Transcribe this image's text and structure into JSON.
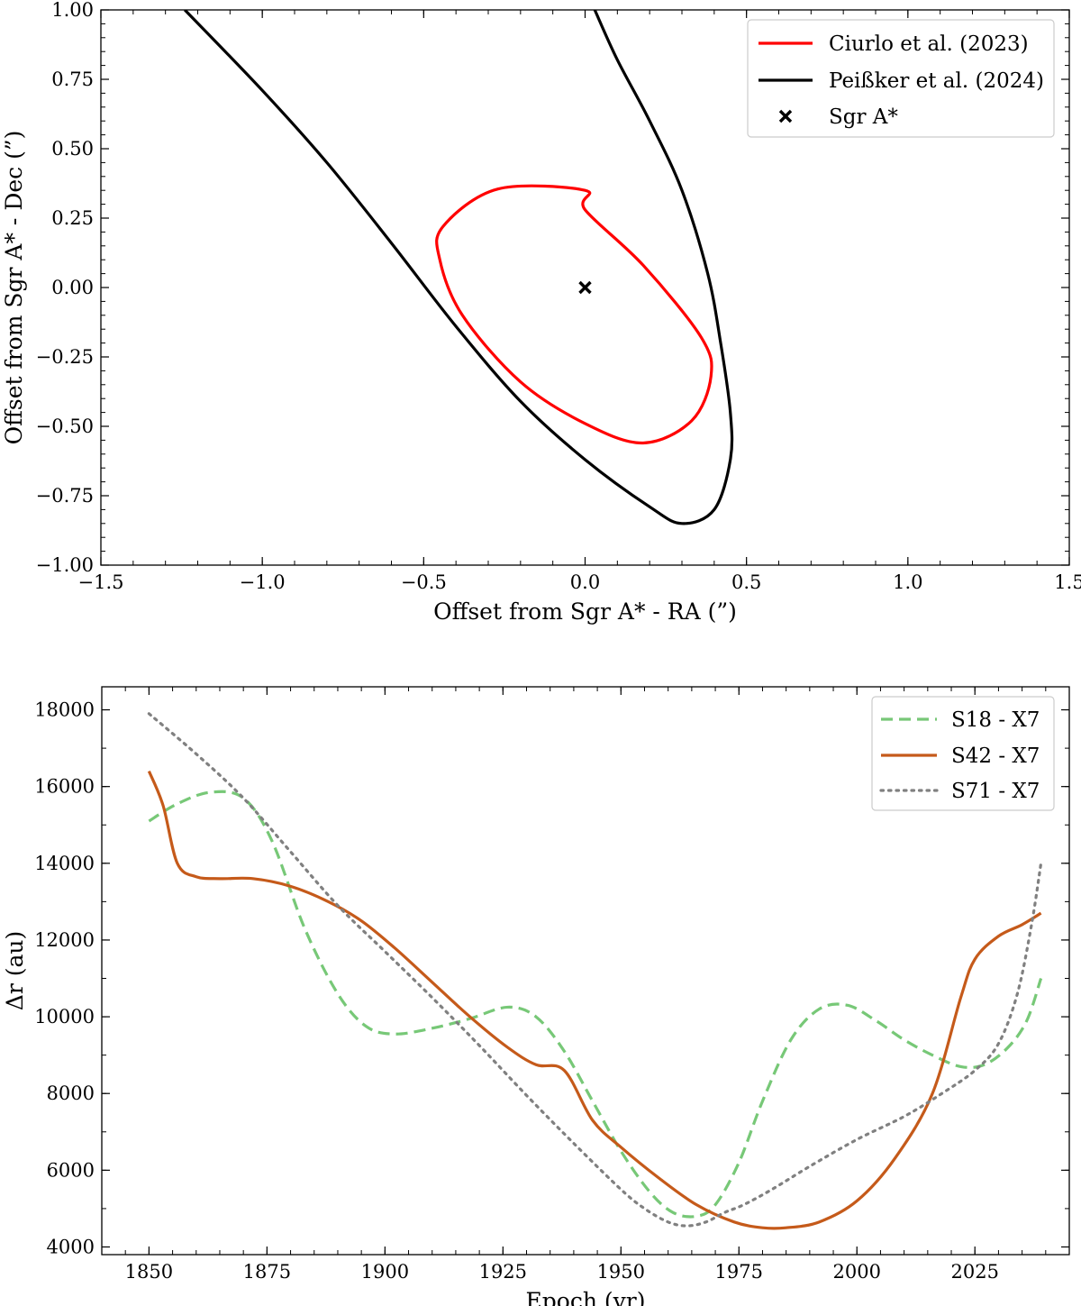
{
  "chart_data": [
    {
      "type": "line",
      "xlabel": "Offset from Sgr A* - RA (”)",
      "ylabel": "Offset from Sgr A* - Dec (”)",
      "xlim": [
        -1.5,
        1.5
      ],
      "ylim": [
        -1.0,
        1.0
      ],
      "xticks": [
        -1.5,
        -1.0,
        -0.5,
        0.0,
        0.5,
        1.0,
        1.5
      ],
      "xtick_labels": [
        "−1.5",
        "−1.0",
        "−0.5",
        "0.0",
        "0.5",
        "1.0",
        "1.5"
      ],
      "yticks": [
        -1.0,
        -0.75,
        -0.5,
        -0.25,
        0.0,
        0.25,
        0.5,
        0.75,
        1.0
      ],
      "ytick_labels": [
        "−1.00",
        "−0.75",
        "−0.50",
        "−0.25",
        "0.00",
        "0.25",
        "0.50",
        "0.75",
        "1.00"
      ],
      "grid": false,
      "legend_position": "top-right",
      "series": [
        {
          "name": "Ciurlo et al. (2023)",
          "color": "#ff0000",
          "style": "solid",
          "x": [
            0.0,
            -0.27,
            -0.44,
            -0.45,
            -0.38,
            -0.2,
            0.0,
            0.18,
            0.33,
            0.39,
            0.36,
            0.18,
            0.0
          ],
          "y": [
            0.35,
            0.355,
            0.22,
            0.1,
            -0.1,
            -0.34,
            -0.49,
            -0.56,
            -0.48,
            -0.32,
            -0.18,
            0.08,
            0.28
          ]
        },
        {
          "name": "Peißker et al. (2024)",
          "color": "#000000",
          "style": "solid",
          "x": [
            -1.24,
            -1.0,
            -0.8,
            -0.6,
            -0.4,
            -0.2,
            0.0,
            0.2,
            0.3,
            0.4,
            0.45,
            0.45,
            0.42,
            0.38,
            0.3,
            0.2,
            0.1,
            0.03
          ],
          "y": [
            1.0,
            0.71,
            0.45,
            0.16,
            -0.14,
            -0.41,
            -0.62,
            -0.79,
            -0.85,
            -0.8,
            -0.62,
            -0.45,
            -0.2,
            0.05,
            0.35,
            0.6,
            0.82,
            1.0
          ]
        },
        {
          "name": "Sgr A*",
          "color": "#000000",
          "style": "marker-x",
          "x": [
            0.0
          ],
          "y": [
            0.0
          ]
        }
      ]
    },
    {
      "type": "line",
      "xlabel": "Epoch (yr)",
      "ylabel": "Δr (au)",
      "xlim": [
        1840,
        2045
      ],
      "ylim": [
        3800,
        18600
      ],
      "xticks": [
        1850,
        1875,
        1900,
        1925,
        1950,
        1975,
        2000,
        2025
      ],
      "xtick_labels": [
        "1850",
        "1875",
        "1900",
        "1925",
        "1950",
        "1975",
        "2000",
        "2025"
      ],
      "yticks": [
        4000,
        6000,
        8000,
        10000,
        12000,
        14000,
        16000,
        18000
      ],
      "ytick_labels": [
        "4000",
        "6000",
        "8000",
        "10000",
        "12000",
        "14000",
        "16000",
        "18000"
      ],
      "grid": false,
      "legend_position": "top-right",
      "series": [
        {
          "name": "S18 - X7",
          "color": "#77c877",
          "style": "dashed",
          "x": [
            1850,
            1856,
            1863,
            1870,
            1876,
            1883,
            1890,
            1896,
            1902,
            1910,
            1918,
            1926,
            1932,
            1938,
            1944,
            1950,
            1956,
            1961,
            1966,
            1970,
            1975,
            1980,
            1986,
            1992,
            1998,
            2004,
            2010,
            2016,
            2022,
            2027,
            2032,
            2036,
            2039
          ],
          "y": [
            15100,
            15550,
            15850,
            15700,
            14600,
            12300,
            10600,
            9750,
            9550,
            9700,
            9950,
            10250,
            10000,
            9100,
            7800,
            6500,
            5450,
            4900,
            4800,
            5100,
            6200,
            7800,
            9400,
            10200,
            10300,
            9900,
            9400,
            9000,
            8700,
            8750,
            9200,
            9900,
            11000
          ]
        },
        {
          "name": "S42 - X7",
          "color": "#c55a1a",
          "style": "solid",
          "x": [
            1850,
            1853,
            1856,
            1860,
            1865,
            1872,
            1880,
            1888,
            1895,
            1902,
            1910,
            1918,
            1926,
            1932,
            1938,
            1944,
            1950,
            1958,
            1966,
            1974,
            1980,
            1985,
            1992,
            2000,
            2008,
            2016,
            2022,
            2025,
            2030,
            2035,
            2039
          ],
          "y": [
            16400,
            15500,
            14000,
            13650,
            13600,
            13600,
            13400,
            13000,
            12500,
            11800,
            10900,
            10000,
            9200,
            8750,
            8600,
            7300,
            6600,
            5800,
            5100,
            4650,
            4500,
            4500,
            4650,
            5200,
            6300,
            8000,
            10500,
            11500,
            12100,
            12400,
            12700
          ]
        },
        {
          "name": "S71 - X7",
          "color": "#808080",
          "style": "dotted",
          "x": [
            1850,
            1860,
            1870,
            1880,
            1890,
            1900,
            1910,
            1920,
            1930,
            1940,
            1950,
            1955,
            1960,
            1964,
            1968,
            1972,
            1976,
            1982,
            1990,
            2000,
            2010,
            2018,
            2025,
            2030,
            2034,
            2037,
            2039
          ],
          "y": [
            17900,
            16850,
            15700,
            14300,
            12900,
            11700,
            10500,
            9250,
            7950,
            6700,
            5500,
            5000,
            4650,
            4550,
            4650,
            4900,
            5100,
            5500,
            6100,
            6800,
            7400,
            8000,
            8600,
            9300,
            10600,
            12400,
            14000
          ]
        }
      ]
    }
  ]
}
